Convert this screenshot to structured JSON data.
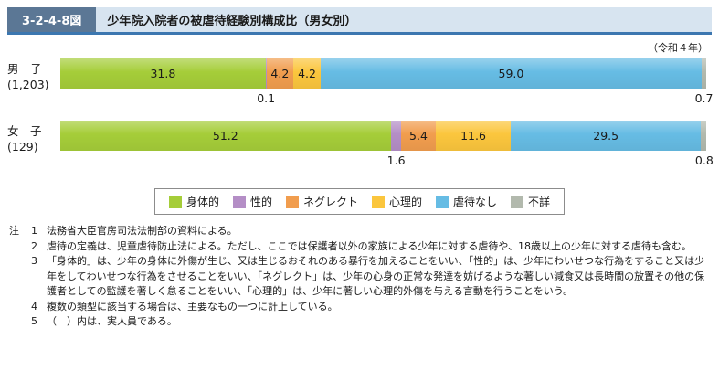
{
  "header": {
    "figure_number": "3-2-4-8図",
    "title": "少年院入院者の被虐待経験別構成比（男女別）"
  },
  "year_note": "（令和４年）",
  "chart_data": {
    "type": "bar",
    "orientation": "horizontal",
    "stacked": true,
    "unit": "%",
    "xlim": [
      0,
      100
    ],
    "legend_position": "bottom",
    "legend": [
      {
        "name": "身体的",
        "color": "#a5cd39"
      },
      {
        "name": "性的",
        "color": "#b48ec6"
      },
      {
        "name": "ネグレクト",
        "color": "#f19d4e"
      },
      {
        "name": "心理的",
        "color": "#fbc63d"
      },
      {
        "name": "虐待なし",
        "color": "#66bce4"
      },
      {
        "name": "不詳",
        "color": "#b2b9ad"
      }
    ],
    "rows": [
      {
        "category": "男　子",
        "count_label": "(1,203)",
        "values": [
          31.8,
          0.1,
          4.2,
          4.2,
          59.0,
          0.7
        ]
      },
      {
        "category": "女　子",
        "count_label": "(129)",
        "values": [
          51.2,
          1.6,
          5.4,
          11.6,
          29.5,
          0.8
        ]
      }
    ]
  },
  "notes": {
    "prefix": "注",
    "items": [
      {
        "num": "1",
        "text": "法務省大臣官房司法法制部の資料による。"
      },
      {
        "num": "2",
        "text": "虐待の定義は、児童虐待防止法による。ただし、ここでは保護者以外の家族による少年に対する虐待や、18歳以上の少年に対する虐待も含む。"
      },
      {
        "num": "3",
        "text": "「身体的」は、少年の身体に外傷が生じ、又は生じるおそれのある暴行を加えることをいい、「性的」は、少年にわいせつな行為をすること又は少年をしてわいせつな行為をさせることをいい、「ネグレクト」は、少年の心身の正常な発達を妨げるような著しい減食又は長時間の放置その他の保護者としての監護を著しく怠ることをいい、「心理的」は、少年に著しい心理的外傷を与える言動を行うことをいう。"
      },
      {
        "num": "4",
        "text": "複数の類型に該当する場合は、主要なもの一つに計上している。"
      },
      {
        "num": "5",
        "text": "（　）内は、実人員である。"
      }
    ]
  }
}
